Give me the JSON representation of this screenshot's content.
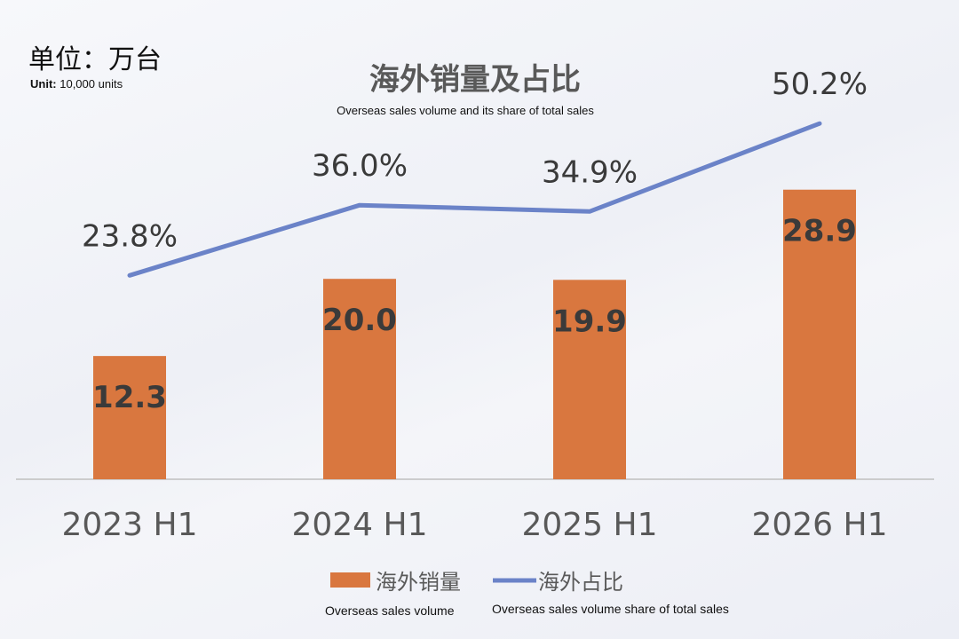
{
  "unit": {
    "label_cn": "单位：万台",
    "label_en_prefix": "Unit:",
    "label_en_value": "10,000 units"
  },
  "colors": {
    "bar": "#d9773f",
    "line": "#6b83c8",
    "value_label": "#3a3a3a",
    "pct_label": "#3a3a3a",
    "axis": "#bfbfbf",
    "category": "#595959"
  },
  "chart_data": {
    "type": "bar+line",
    "title": "海外销量及占比",
    "subtitle": "Overseas sales volume and its share of total sales",
    "categories": [
      "2023 H1",
      "2024 H1",
      "2025 H1",
      "2026 H1"
    ],
    "series": [
      {
        "name": "海外销量",
        "name_en": "Overseas sales volume",
        "type": "bar",
        "values": [
          12.3,
          20.0,
          19.9,
          28.9
        ],
        "labels": [
          "12.3",
          "20.0",
          "19.9",
          "28.9"
        ]
      },
      {
        "name": "海外占比",
        "name_en": "Overseas sales volume share of total sales",
        "type": "line",
        "values": [
          23.8,
          36.0,
          34.9,
          50.2
        ],
        "labels": [
          "23.8%",
          "36.0%",
          "34.9%",
          "50.2%"
        ]
      }
    ],
    "grid": false,
    "legend_position": "bottom"
  }
}
